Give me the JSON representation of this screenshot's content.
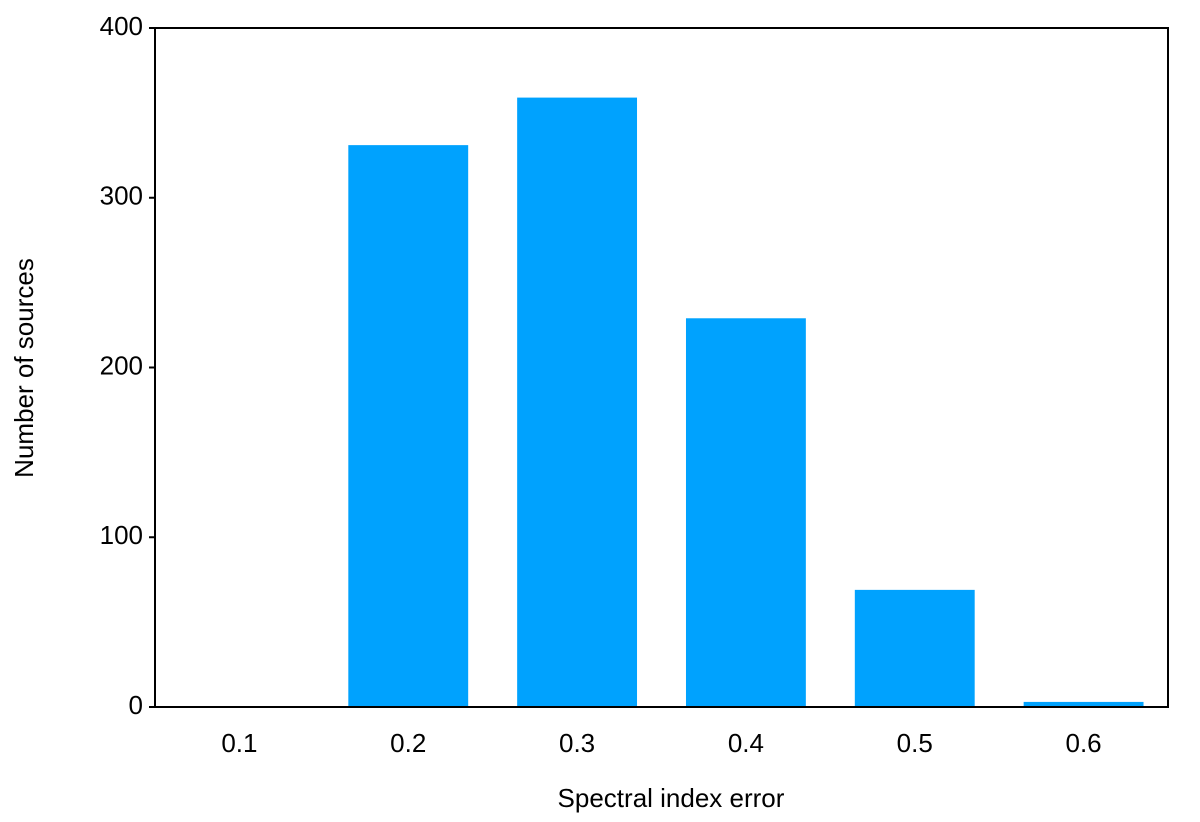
{
  "chart_data": {
    "type": "bar",
    "categories": [
      "0.1",
      "0.2",
      "0.3",
      "0.4",
      "0.5",
      "0.6"
    ],
    "values": [
      0,
      331,
      359,
      229,
      69,
      3
    ],
    "color": "#00a2fe",
    "xlabel": "Spectral index error",
    "ylabel": "Number of sources",
    "ylim": [
      0,
      400
    ],
    "yticks": [
      0,
      100,
      200,
      300,
      400
    ],
    "grid": false
  }
}
